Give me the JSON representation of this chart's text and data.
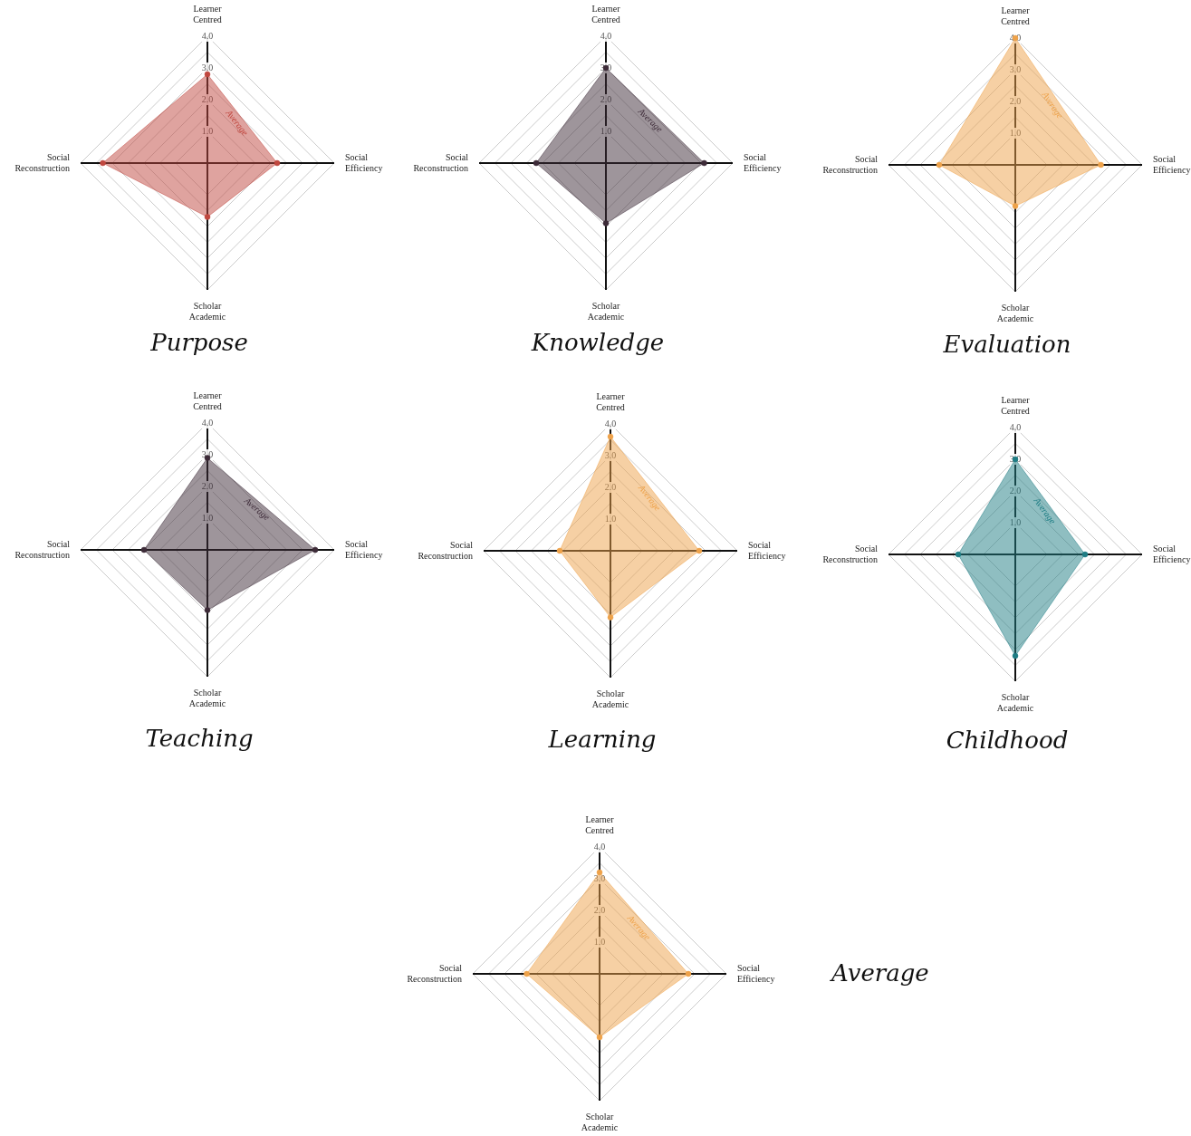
{
  "chart_data": [
    {
      "type": "radar",
      "title": "Purpose",
      "categories": [
        "Learner Centred",
        "Social Efficiency",
        "Scholar Academic",
        "Social Reconstruction"
      ],
      "series": [
        {
          "name": "Average",
          "color": "#c0473f",
          "values": [
            2.8,
            2.2,
            1.7,
            3.3
          ]
        }
      ],
      "ylim": [
        0,
        4
      ],
      "yticks": [
        {
          "value": 1,
          "label": "1.0"
        },
        {
          "value": 2,
          "label": "2.0"
        },
        {
          "value": 3,
          "label": "3.0"
        },
        {
          "value": 4,
          "label": "4.0"
        }
      ],
      "grid": true,
      "marker": "circle",
      "legend": false
    },
    {
      "type": "radar",
      "title": "Knowledge",
      "categories": [
        "Learner Centred",
        "Social Efficiency",
        "Scholar Academic",
        "Social Reconstruction"
      ],
      "series": [
        {
          "name": "Average",
          "color": "#3d2b38",
          "values": [
            3.0,
            3.1,
            1.9,
            2.2
          ]
        }
      ],
      "ylim": [
        0,
        4
      ],
      "yticks": [
        {
          "value": 1,
          "label": "1.0"
        },
        {
          "value": 2,
          "label": "2.0"
        },
        {
          "value": 3,
          "label": "3.0"
        },
        {
          "value": 4,
          "label": "4.0"
        }
      ],
      "grid": true,
      "marker": "circle",
      "legend": false
    },
    {
      "type": "radar",
      "title": "Evaluation",
      "categories": [
        "Learner Centred",
        "Social Efficiency",
        "Scholar Academic",
        "Social Reconstruction"
      ],
      "series": [
        {
          "name": "Average",
          "color": "#eea24a",
          "values": [
            4.0,
            2.7,
            1.3,
            2.4
          ]
        }
      ],
      "ylim": [
        0,
        4
      ],
      "yticks": [
        {
          "value": 1,
          "label": "1.0"
        },
        {
          "value": 2,
          "label": "2.0"
        },
        {
          "value": 3,
          "label": "3.0"
        },
        {
          "value": 4,
          "label": "4.0"
        }
      ],
      "grid": true,
      "marker": "circle",
      "legend": false
    },
    {
      "type": "radar",
      "title": "Teaching",
      "categories": [
        "Learner Centred",
        "Social Efficiency",
        "Scholar Academic",
        "Social Reconstruction"
      ],
      "series": [
        {
          "name": "Average",
          "color": "#3d2b38",
          "values": [
            2.9,
            3.4,
            1.9,
            2.0
          ]
        }
      ],
      "ylim": [
        0,
        4
      ],
      "yticks": [
        {
          "value": 1,
          "label": "1.0"
        },
        {
          "value": 2,
          "label": "2.0"
        },
        {
          "value": 3,
          "label": "3.0"
        },
        {
          "value": 4,
          "label": "4.0"
        }
      ],
      "grid": true,
      "marker": "circle",
      "legend": false
    },
    {
      "type": "radar",
      "title": "Learning",
      "categories": [
        "Learner Centred",
        "Social Efficiency",
        "Scholar Academic",
        "Social Reconstruction"
      ],
      "series": [
        {
          "name": "Average",
          "color": "#eea24a",
          "values": [
            3.6,
            2.8,
            2.1,
            1.6
          ]
        }
      ],
      "ylim": [
        0,
        4
      ],
      "yticks": [
        {
          "value": 1,
          "label": "1.0"
        },
        {
          "value": 2,
          "label": "2.0"
        },
        {
          "value": 3,
          "label": "3.0"
        },
        {
          "value": 4,
          "label": "4.0"
        }
      ],
      "grid": true,
      "marker": "circle",
      "legend": false
    },
    {
      "type": "radar",
      "title": "Childhood",
      "categories": [
        "Learner Centred",
        "Social Efficiency",
        "Scholar Academic",
        "Social Reconstruction"
      ],
      "series": [
        {
          "name": "Average",
          "color": "#1f7d84",
          "values": [
            3.0,
            2.2,
            3.2,
            1.8
          ]
        }
      ],
      "ylim": [
        0,
        4
      ],
      "yticks": [
        {
          "value": 1,
          "label": "1.0"
        },
        {
          "value": 2,
          "label": "2.0"
        },
        {
          "value": 3,
          "label": "3.0"
        },
        {
          "value": 4,
          "label": "4.0"
        }
      ],
      "grid": true,
      "marker": "circle",
      "legend": false
    },
    {
      "type": "radar",
      "title": "Average",
      "categories": [
        "Learner Centred",
        "Social Efficiency",
        "Scholar Academic",
        "Social Reconstruction"
      ],
      "series": [
        {
          "name": "Average",
          "color": "#eea24a",
          "values": [
            3.2,
            2.8,
            2.0,
            2.3
          ]
        }
      ],
      "ylim": [
        0,
        4
      ],
      "yticks": [
        {
          "value": 1,
          "label": "1.0"
        },
        {
          "value": 2,
          "label": "2.0"
        },
        {
          "value": 3,
          "label": "3.0"
        },
        {
          "value": 4,
          "label": "4.0"
        }
      ],
      "grid": true,
      "marker": "circle",
      "legend": false
    }
  ]
}
